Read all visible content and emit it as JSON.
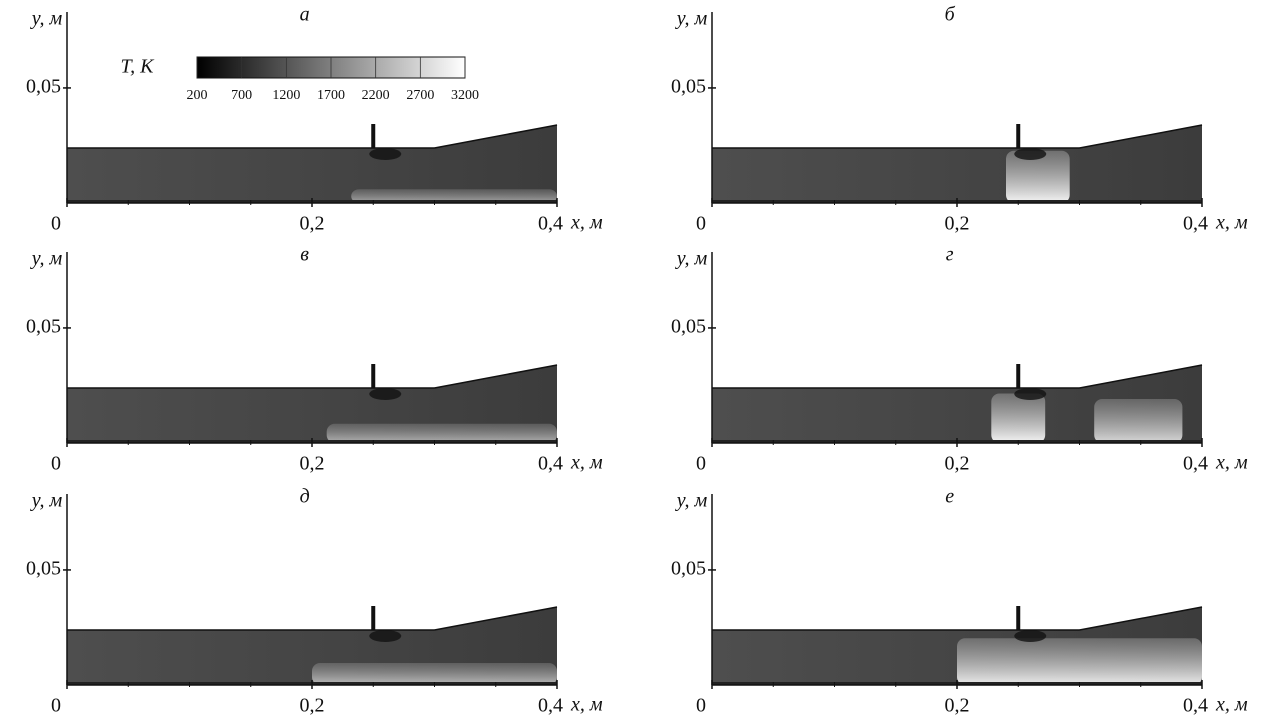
{
  "chart_data": [
    {
      "type": "field",
      "title": "а",
      "xlabel": "x, м",
      "ylabel": "y, м",
      "xlim": [
        0,
        0.4
      ],
      "ylim": [
        0,
        0.083
      ],
      "xticks": [
        0,
        {
          "value": 0.2,
          "label": "0,2"
        },
        {
          "value": 0.4,
          "label": "0,4"
        }
      ],
      "xminorticks": [
        0.05,
        0.1,
        0.15,
        0.25,
        0.3,
        0.35
      ],
      "yticks": [
        {
          "value": 0.05,
          "label": "0,05"
        }
      ],
      "colorbar": {
        "label": "T, K",
        "ticks": [
          200,
          700,
          1200,
          1700,
          2200,
          2700,
          3200
        ],
        "colors": [
          "#000000",
          "#ffffff"
        ]
      }
    },
    {
      "type": "field",
      "title": "б",
      "xlabel": "x, м",
      "ylabel": "y, м",
      "xlim": [
        0,
        0.4
      ],
      "ylim": [
        0,
        0.083
      ],
      "xticks": [
        0,
        {
          "value": 0.2,
          "label": "0,2"
        },
        {
          "value": 0.4,
          "label": "0,4"
        }
      ],
      "xminorticks": [
        0.05,
        0.1,
        0.15,
        0.25,
        0.3,
        0.35
      ],
      "yticks": [
        {
          "value": 0.05,
          "label": "0,05"
        }
      ]
    },
    {
      "type": "field",
      "title": "в",
      "xlabel": "x, м",
      "ylabel": "y, м",
      "xlim": [
        0,
        0.4
      ],
      "ylim": [
        0,
        0.083
      ],
      "xticks": [
        0,
        {
          "value": 0.2,
          "label": "0,2"
        },
        {
          "value": 0.4,
          "label": "0,4"
        }
      ],
      "xminorticks": [
        0.05,
        0.1,
        0.15,
        0.25,
        0.3,
        0.35
      ],
      "yticks": [
        {
          "value": 0.05,
          "label": "0,05"
        }
      ]
    },
    {
      "type": "field",
      "title": "г",
      "xlabel": "x, м",
      "ylabel": "y, м",
      "xlim": [
        0,
        0.4
      ],
      "ylim": [
        0,
        0.083
      ],
      "xticks": [
        0,
        {
          "value": 0.2,
          "label": "0,2"
        },
        {
          "value": 0.4,
          "label": "0,4"
        }
      ],
      "xminorticks": [
        0.05,
        0.1,
        0.15,
        0.25,
        0.3,
        0.35
      ],
      "yticks": [
        {
          "value": 0.05,
          "label": "0,05"
        }
      ]
    },
    {
      "type": "field",
      "title": "д",
      "xlabel": "x, м",
      "ylabel": "y, м",
      "xlim": [
        0,
        0.4
      ],
      "ylim": [
        0,
        0.083
      ],
      "xticks": [
        0,
        {
          "value": 0.2,
          "label": "0,2"
        },
        {
          "value": 0.4,
          "label": "0,4"
        }
      ],
      "xminorticks": [
        0.05,
        0.1,
        0.15,
        0.25,
        0.3,
        0.35
      ],
      "yticks": [
        {
          "value": 0.05,
          "label": "0,05"
        }
      ]
    },
    {
      "type": "field",
      "title": "е",
      "xlabel": "x, м",
      "ylabel": "y, м",
      "xlim": [
        0,
        0.4
      ],
      "ylim": [
        0,
        0.083
      ],
      "xticks": [
        0,
        {
          "value": 0.2,
          "label": "0,2"
        },
        {
          "value": 0.4,
          "label": "0,4"
        }
      ],
      "xminorticks": [
        0.05,
        0.1,
        0.15,
        0.25,
        0.3,
        0.35
      ],
      "yticks": [
        {
          "value": 0.05,
          "label": "0,05"
        }
      ]
    }
  ]
}
